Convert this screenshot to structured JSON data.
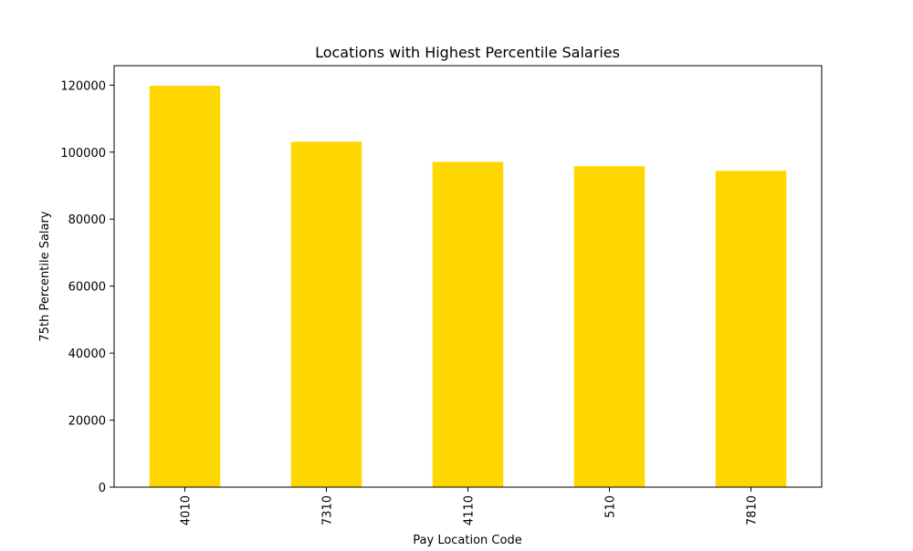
{
  "chart_data": {
    "type": "bar",
    "title": "Locations with Highest Percentile Salaries",
    "xlabel": "Pay Location Code",
    "ylabel": "75th Percentile Salary",
    "categories": [
      "4010",
      "7310",
      "4110",
      "510",
      "7810"
    ],
    "values": [
      119800,
      103100,
      97100,
      95800,
      94400
    ],
    "ylim": [
      0,
      125800
    ],
    "yticks": [
      0,
      20000,
      40000,
      60000,
      80000,
      100000,
      120000
    ],
    "bar_color": "#ffd700",
    "grid": false,
    "legend": "none"
  }
}
